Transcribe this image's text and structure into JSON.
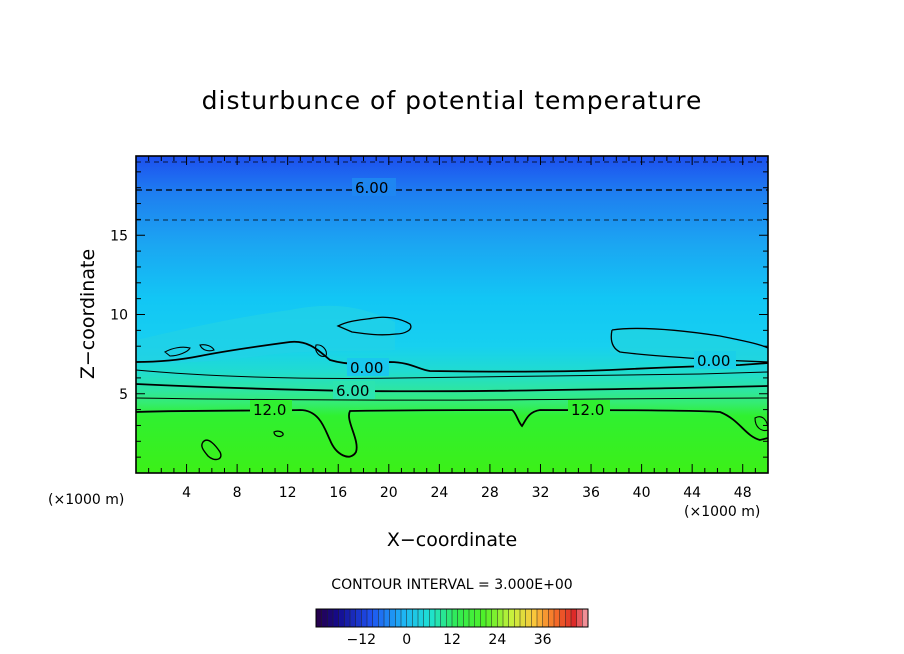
{
  "chart_data": {
    "type": "heatmap",
    "title": "disturbunce of potential temperature",
    "xlabel": "X−coordinate",
    "ylabel": "Z−coordinate",
    "x_unit": "(×1000 m)",
    "y_unit": "(×1000 m)",
    "xlim": [
      0,
      50
    ],
    "ylim": [
      0,
      20
    ],
    "x_ticks": [
      4,
      8,
      12,
      16,
      20,
      24,
      28,
      32,
      36,
      40,
      44,
      48
    ],
    "y_ticks": [
      5,
      10,
      15
    ],
    "contour_interval": "CONTOUR INTERVAL = 3.000E+00",
    "contour_labels": [
      {
        "text": "6.00",
        "x": 19,
        "y": 17.7
      },
      {
        "text": "0.00",
        "x": 18,
        "y": 6.4
      },
      {
        "text": "6.00",
        "x": 17,
        "y": 5.1
      },
      {
        "text": "12.0",
        "x": 10.5,
        "y": 3.8
      },
      {
        "text": "12.0",
        "x": 35.5,
        "y": 3.9
      },
      {
        "text": "0.00",
        "x": 46,
        "y": 7.0
      }
    ],
    "colorbar": {
      "range": [
        -24,
        48
      ],
      "ticks": [
        -12,
        0,
        12,
        24,
        36
      ],
      "tick_labels": [
        "−12",
        "0",
        "12",
        "24",
        "36"
      ]
    }
  },
  "colors": {
    "top": "#1f55f0",
    "upper": "#1e98f2",
    "middle": "#1cc3f6",
    "low": "#1ee0c8",
    "green": "#2ff02a"
  }
}
